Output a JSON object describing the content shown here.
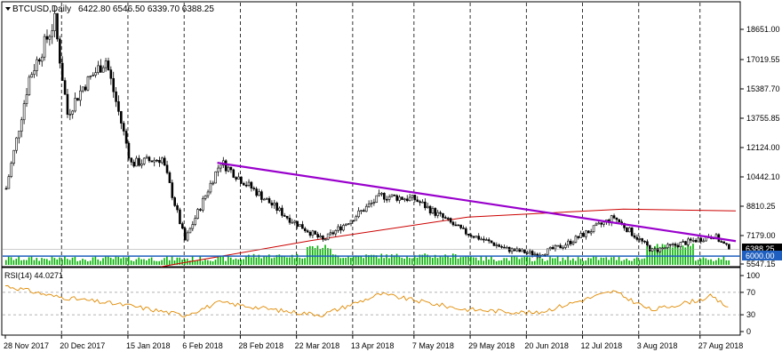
{
  "window": {
    "symbol": "BTCUSD,Daily",
    "ohlc": "6422.80 6546.50 6339.70 6388.25",
    "collapse_icon": "triangle-down-icon"
  },
  "colors": {
    "bull": "#000000",
    "bear": "#000000",
    "volume": "#00b000",
    "trendline": "#9900cc",
    "ma": "#cc0000",
    "support": "#1f5fbf",
    "rsi": "#e08a00",
    "grid": "#000000",
    "price_tag_bg": "#000000"
  },
  "price_panel": {
    "y_ticks": [
      "18651.00",
      "17019.55",
      "15387.70",
      "13755.85",
      "12124.00",
      "10442.10",
      "8810.25",
      "7179.00",
      "5547.15"
    ],
    "current_price_tag": "6388.25",
    "support_price_tag": "6000.00"
  },
  "rsi_panel": {
    "label": "RSI(14) 44.0271",
    "y_ticks": [
      "100",
      "70",
      "30",
      "0"
    ]
  },
  "x_axis": {
    "labels": [
      "28 Nov 2017",
      "20 Dec 2017",
      "15 Jan 2018",
      "6 Feb 2018",
      "28 Feb 2018",
      "22 Mar 2018",
      "13 Apr 2018",
      "7 May 2018",
      "29 May 2018",
      "20 Jun 2018",
      "12 Jul 2018",
      "3 Aug 2018",
      "27 Aug 2018"
    ]
  },
  "chart_data": {
    "type": "candlestick",
    "instrument": "BTCUSD",
    "timeframe": "Daily",
    "ylim": [
      5547.15,
      19300
    ],
    "close_path": [
      {
        "date": "2017-11-28",
        "close": 9800
      },
      {
        "date": "2017-12-07",
        "close": 16000
      },
      {
        "date": "2017-12-17",
        "close": 19100
      },
      {
        "date": "2017-12-22",
        "close": 14000
      },
      {
        "date": "2017-12-28",
        "close": 15500
      },
      {
        "date": "2018-01-06",
        "close": 17000
      },
      {
        "date": "2018-01-16",
        "close": 11200
      },
      {
        "date": "2018-01-28",
        "close": 11500
      },
      {
        "date": "2018-02-06",
        "close": 6900
      },
      {
        "date": "2018-02-20",
        "close": 11300
      },
      {
        "date": "2018-02-28",
        "close": 10300
      },
      {
        "date": "2018-03-18",
        "close": 8200
      },
      {
        "date": "2018-04-01",
        "close": 6900
      },
      {
        "date": "2018-04-14",
        "close": 8300
      },
      {
        "date": "2018-04-24",
        "close": 9400
      },
      {
        "date": "2018-05-07",
        "close": 9200
      },
      {
        "date": "2018-05-26",
        "close": 7400
      },
      {
        "date": "2018-06-12",
        "close": 6400
      },
      {
        "date": "2018-06-24",
        "close": 6100
      },
      {
        "date": "2018-07-04",
        "close": 6600
      },
      {
        "date": "2018-07-24",
        "close": 8200
      },
      {
        "date": "2018-08-08",
        "close": 6300
      },
      {
        "date": "2018-08-27",
        "close": 7000
      },
      {
        "date": "2018-09-01",
        "close": 7200
      },
      {
        "date": "2018-09-07",
        "close": 6388.25
      }
    ],
    "trendline": [
      {
        "date": "2018-02-19",
        "price": 11250
      },
      {
        "date": "2018-09-10",
        "price": 6860
      }
    ],
    "moving_average": [
      {
        "date": "2018-01-28",
        "price": 5400
      },
      {
        "date": "2018-03-28",
        "price": 6900
      },
      {
        "date": "2018-05-28",
        "price": 8200
      },
      {
        "date": "2018-07-28",
        "price": 8650
      },
      {
        "date": "2018-09-10",
        "price": 8550
      }
    ],
    "support_level": 6000,
    "rsi": {
      "period": 14,
      "last": 44.0271,
      "levels": [
        70,
        30
      ],
      "series": [
        {
          "date": "2017-11-28",
          "value": 82
        },
        {
          "date": "2017-12-17",
          "value": 63
        },
        {
          "date": "2018-01-16",
          "value": 46
        },
        {
          "date": "2018-02-06",
          "value": 29
        },
        {
          "date": "2018-02-20",
          "value": 52
        },
        {
          "date": "2018-03-18",
          "value": 36
        },
        {
          "date": "2018-04-01",
          "value": 30
        },
        {
          "date": "2018-04-24",
          "value": 67
        },
        {
          "date": "2018-05-26",
          "value": 40
        },
        {
          "date": "2018-06-24",
          "value": 33
        },
        {
          "date": "2018-07-24",
          "value": 72
        },
        {
          "date": "2018-08-08",
          "value": 38
        },
        {
          "date": "2018-08-27",
          "value": 57
        },
        {
          "date": "2018-08-31",
          "value": 63
        },
        {
          "date": "2018-09-07",
          "value": 44
        }
      ]
    }
  }
}
